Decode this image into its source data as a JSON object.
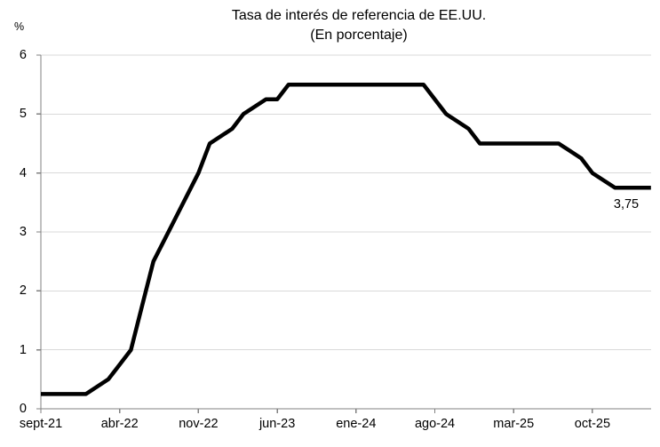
{
  "chart_data": {
    "type": "line",
    "title": "Tasa de interés de referencia de EE.UU.",
    "subtitle": "(En porcentaje)",
    "y_axis_unit": "%",
    "ylim": [
      0,
      6
    ],
    "y_ticks": [
      0,
      1,
      2,
      3,
      4,
      5,
      6
    ],
    "grid": "horizontal",
    "legend_position": "none",
    "line_color": "#000000",
    "axis_color": "#808080",
    "gridline_color": "#d9d9d9",
    "x_tick_labels": [
      "sept-21",
      "abr-22",
      "nov-22",
      "jun-23",
      "ene-24",
      "ago-24",
      "mar-25",
      "oct-25"
    ],
    "x_tick_months": [
      0,
      7,
      14,
      21,
      28,
      35,
      42,
      49
    ],
    "series": [
      {
        "name": "Tasa de interés de referencia de EE.UU.",
        "points": [
          {
            "x": "sep-21",
            "m": 0,
            "y": 0.25
          },
          {
            "x": "ene-22",
            "m": 4,
            "y": 0.25
          },
          {
            "x": "mar-22",
            "m": 6,
            "y": 0.5
          },
          {
            "x": "may-22",
            "m": 8,
            "y": 1.0
          },
          {
            "x": "jun-22",
            "m": 9,
            "y": 1.75
          },
          {
            "x": "jul-22",
            "m": 10,
            "y": 2.5
          },
          {
            "x": "sep-22",
            "m": 12,
            "y": 3.25
          },
          {
            "x": "nov-22",
            "m": 14,
            "y": 4.0
          },
          {
            "x": "dic-22",
            "m": 15,
            "y": 4.5
          },
          {
            "x": "feb-23",
            "m": 17,
            "y": 4.75
          },
          {
            "x": "mar-23",
            "m": 18,
            "y": 5.0
          },
          {
            "x": "may-23",
            "m": 20,
            "y": 5.25
          },
          {
            "x": "jun-23",
            "m": 21,
            "y": 5.25
          },
          {
            "x": "jul-23",
            "m": 22,
            "y": 5.5
          },
          {
            "x": "jul-24",
            "m": 34,
            "y": 5.5
          },
          {
            "x": "sep-24",
            "m": 36,
            "y": 5.0
          },
          {
            "x": "nov-24",
            "m": 38,
            "y": 4.75
          },
          {
            "x": "dic-24",
            "m": 39,
            "y": 4.5
          },
          {
            "x": "jul-25",
            "m": 46,
            "y": 4.5
          },
          {
            "x": "sep-25",
            "m": 48,
            "y": 4.25
          },
          {
            "x": "oct-25",
            "m": 49,
            "y": 4.0
          },
          {
            "x": "dic-25",
            "m": 51,
            "y": 3.75
          },
          {
            "x": "mar-26",
            "m": 54.2,
            "y": 3.75
          }
        ]
      }
    ],
    "end_label": "3,75"
  }
}
